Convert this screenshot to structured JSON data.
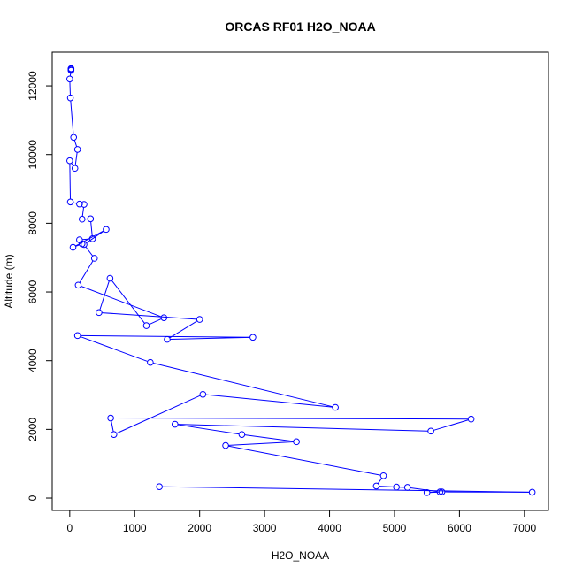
{
  "chart_data": {
    "type": "scatter",
    "title": "ORCAS RF01 H2O_NOAA",
    "xlabel": "H2O_NOAA",
    "ylabel": "Altitude (m)",
    "xlim": [
      -270,
      7370
    ],
    "ylim": [
      -360,
      12980
    ],
    "xticks": [
      0,
      1000,
      2000,
      3000,
      4000,
      5000,
      6000,
      7000
    ],
    "yticks": [
      0,
      2000,
      4000,
      6000,
      8000,
      10000,
      12000
    ],
    "grid": false,
    "legend": "none",
    "series": [
      {
        "color": "#0000ff",
        "marker": "open-circle",
        "line": true,
        "x": [
          20,
          20,
          20,
          20,
          0,
          10,
          60,
          120,
          80,
          0,
          10,
          150,
          220,
          190,
          320,
          350,
          150,
          190,
          50,
          560,
          220,
          380,
          130,
          1450,
          1180,
          620,
          450,
          2000,
          1500,
          2820,
          120,
          1240,
          4090,
          2050,
          680,
          630,
          6180,
          5560,
          1620,
          2650,
          3490,
          2400,
          4830,
          4720,
          5030,
          5200,
          5700,
          5500,
          5730,
          7120,
          1380
        ],
        "y": [
          12500,
          12500,
          12480,
          12450,
          12200,
          11650,
          10500,
          10150,
          9600,
          9820,
          8620,
          8560,
          8550,
          8120,
          8130,
          7550,
          7520,
          7400,
          7300,
          7820,
          7380,
          6980,
          6200,
          5250,
          5020,
          6400,
          5400,
          5200,
          4620,
          4680,
          4730,
          3950,
          2640,
          3020,
          1850,
          2330,
          2300,
          1950,
          2150,
          1850,
          1640,
          1530,
          650,
          350,
          320,
          310,
          180,
          160,
          180,
          170,
          330
        ]
      }
    ]
  }
}
